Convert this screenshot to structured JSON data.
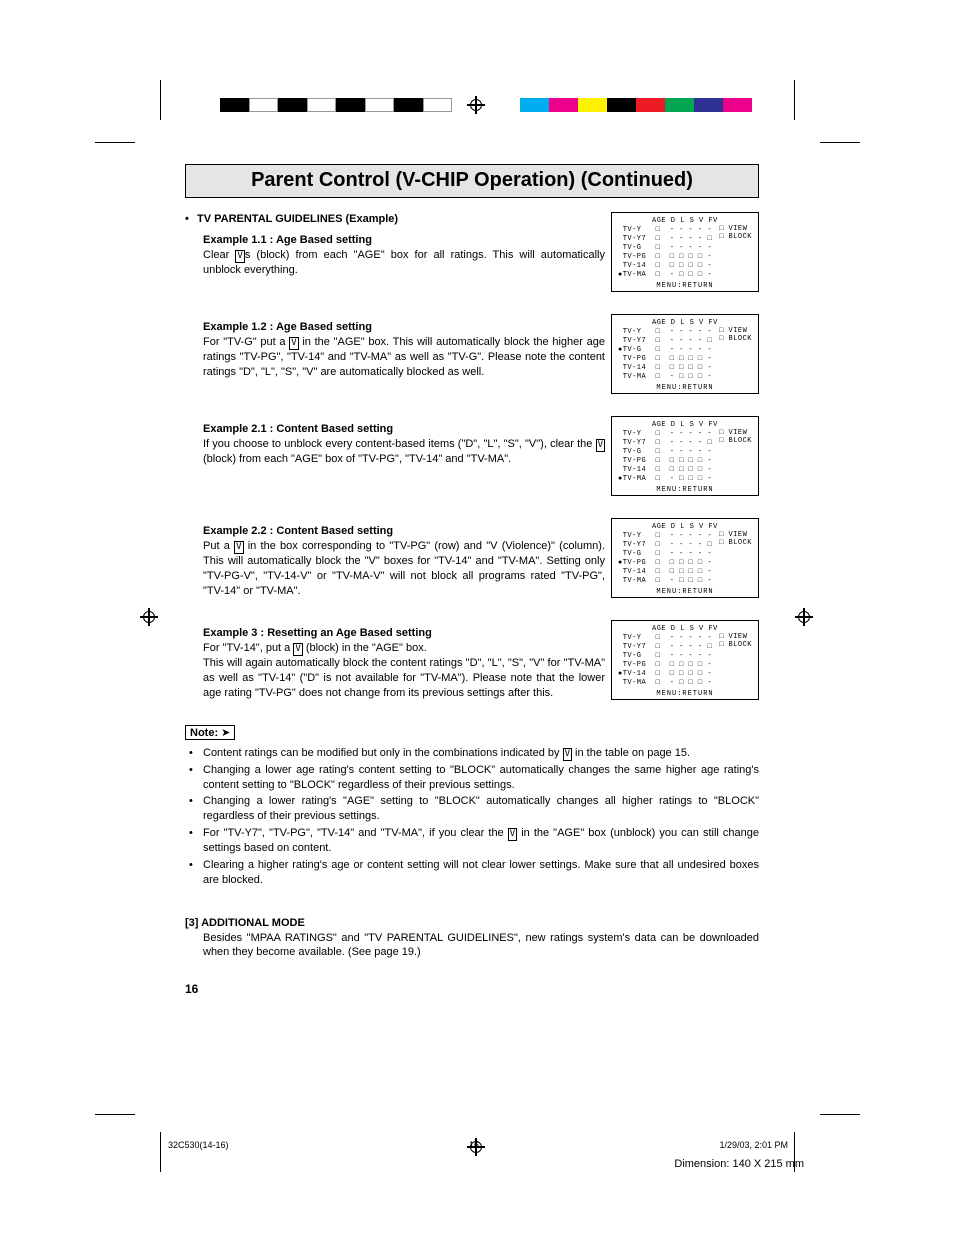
{
  "colors": {
    "page_bg": "#ffffff",
    "title_bg": "#e5e5e5",
    "text": "#000000",
    "swatches_bw": [
      "#000000",
      "#ffffff",
      "#000000",
      "#ffffff",
      "#000000",
      "#ffffff",
      "#000000",
      "#ffffff"
    ],
    "swatches_col": [
      "#00aeef",
      "#ec008c",
      "#fff200",
      "#000000",
      "#ed1c24",
      "#00a651",
      "#2e3192",
      "#ec008c"
    ]
  },
  "title": "Parent Control (V-CHIP Operation) (Continued)",
  "guidelines_head": "TV PARENTAL GUIDELINES (Example)",
  "examples": [
    {
      "head": "Example 1.1 : Age Based setting",
      "body": "Clear |V|s (block) from each \"AGE\" box for all ratings. This will automatically unblock everything.",
      "osd_selected": 5
    },
    {
      "head": "Example 1.2 : Age Based setting",
      "body": "For \"TV-G\" put a |V| in the \"AGE\" box. This will automatically block the higher age ratings \"TV-PG\", \"TV-14\" and \"TV-MA\" as well as \"TV-G\". Please note the content ratings \"D\", \"L\", \"S\", \"V\" are automatically blocked as well.",
      "osd_selected": 2
    },
    {
      "head": "Example 2.1 : Content Based setting",
      "body": "If you choose to unblock every content-based items (\"D\", \"L\", \"S\", \"V\"), clear the |V| (block) from each \"AGE\" box of \"TV-PG\", \"TV-14\" and \"TV-MA\".",
      "osd_selected": 5
    },
    {
      "head": "Example 2.2 : Content Based setting",
      "body": "Put a |V| in the box corresponding to \"TV-PG\" (row) and \"V (Violence)\" (column). This will automatically block the \"V\" boxes for \"TV-14\" and \"TV-MA\". Setting only \"TV-PG-V\", \"TV-14-V\" or \"TV-MA-V\" will not block all programs rated \"TV-PG\", \"TV-14\" or \"TV-MA\".",
      "osd_selected": 3
    },
    {
      "head": "Example 3 : Resetting an Age Based setting",
      "body": "For \"TV-14\", put a |V| (block) in the \"AGE\" box.\nThis will again automatically block the content ratings \"D\", \"L\", \"S\", \"V\" for \"TV-MA\" as well as \"TV-14\" (\"D\" is not available for \"TV-MA\"). Please note that the lower age rating \"TV-PG\" does not change from its previous settings after this.",
      "osd_selected": 4
    }
  ],
  "osd_common": {
    "header": "AGE D L S V FV",
    "ratings": [
      "TV-Y",
      "TV-Y7",
      "TV-G",
      "TV-PG",
      "TV-14",
      "TV-MA"
    ],
    "grid": [
      "□  - - - - - ",
      "□  - - - - □ ",
      "□  - - - - - ",
      "□  □ □ □ □ - ",
      "□  □ □ □ □ - ",
      "□  - □ □ □ - "
    ],
    "footer": "MENU:RETURN",
    "view_label": "□ VIEW",
    "block_label": "□ BLOCK"
  },
  "note_label": "Note:",
  "notes": [
    "Content ratings can be modified but only in the combinations indicated by |V| in the table on page 15.",
    "Changing a lower age rating's content setting to \"BLOCK\" automatically changes the same higher age rating's content setting to \"BLOCK\" regardless of their previous settings.",
    "Changing a lower rating's \"AGE\" setting to \"BLOCK\" automatically changes all higher ratings to \"BLOCK\" regardless of their previous settings.",
    "For \"TV-Y7\", \"TV-PG\", \"TV-14\" and \"TV-MA\", if you clear the |V| in the \"AGE\" box (unblock) you can still change settings based on content.",
    "Clearing a higher rating's age or content setting will not clear lower settings. Make sure that all undesired boxes are blocked."
  ],
  "additional": {
    "head": "[3] ADDITIONAL MODE",
    "body": "Besides \"MPAA RATINGS\" and \"TV PARENTAL GUIDELINES\", new ratings system's data can be downloaded when they become available. (See page 19.)"
  },
  "page_number": "16",
  "footer": {
    "file": "32C530(14-16)",
    "page": "16",
    "timestamp": "1/29/03, 2:01 PM"
  },
  "dimension": "Dimension: 140  X 215 mm"
}
